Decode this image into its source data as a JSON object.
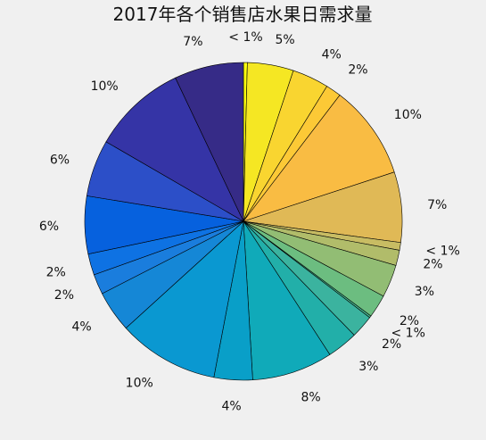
{
  "chart_data": {
    "type": "pie",
    "title": "2017年各个销售店水果日需求量",
    "start": "top",
    "direction": "clockwise",
    "slices": [
      {
        "label": "< 1%",
        "value": 0.4,
        "color": "#f9fb0e"
      },
      {
        "label": "5%",
        "value": 4.8,
        "color": "#f5e723"
      },
      {
        "label": "4%",
        "value": 3.8,
        "color": "#f9d530"
      },
      {
        "label": "2%",
        "value": 1.6,
        "color": "#fcc936"
      },
      {
        "label": "10%",
        "value": 9.8,
        "color": "#f9bc43"
      },
      {
        "label": "7%",
        "value": 7.3,
        "color": "#e0b956"
      },
      {
        "label": "< 1%",
        "value": 0.8,
        "color": "#c8bc63"
      },
      {
        "label": "2%",
        "value": 1.6,
        "color": "#b1bc6a"
      },
      {
        "label": "3%",
        "value": 3.4,
        "color": "#92bd74"
      },
      {
        "label": "2%",
        "value": 2.4,
        "color": "#6cbd80"
      },
      {
        "label": "< 1%",
        "value": 0.2,
        "color": "#45b991"
      },
      {
        "label": "2%",
        "value": 2.4,
        "color": "#3bb39f"
      },
      {
        "label": "3%",
        "value": 3.2,
        "color": "#22afa9"
      },
      {
        "label": "8%",
        "value": 8.4,
        "color": "#10aab9"
      },
      {
        "label": "4%",
        "value": 4.0,
        "color": "#099fc8"
      },
      {
        "label": "10%",
        "value": 10.5,
        "color": "#0a98d1"
      },
      {
        "label": "4%",
        "value": 4.3,
        "color": "#1587d6"
      },
      {
        "label": "2%",
        "value": 2.1,
        "color": "#1a7ddd"
      },
      {
        "label": "2%",
        "value": 2.2,
        "color": "#0e72e3"
      },
      {
        "label": "6%",
        "value": 6.0,
        "color": "#0661de"
      },
      {
        "label": "6%",
        "value": 5.9,
        "color": "#2c4fc8"
      },
      {
        "label": "10%",
        "value": 9.8,
        "color": "#3534a6"
      },
      {
        "label": "7%",
        "value": 7.2,
        "color": "#362b87"
      }
    ]
  }
}
